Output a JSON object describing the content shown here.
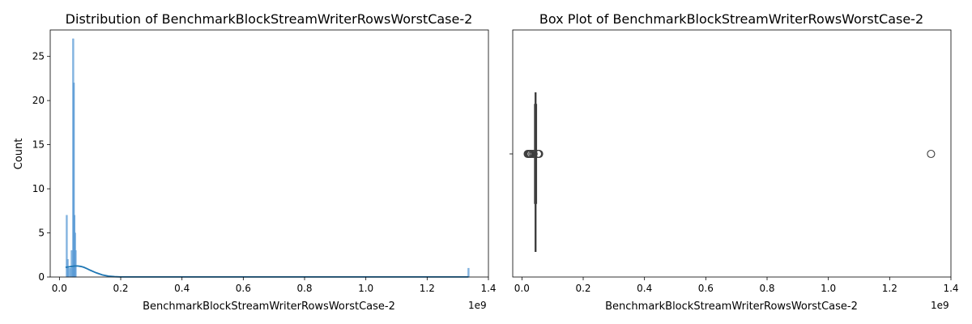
{
  "chart_data": [
    {
      "type": "histogram",
      "title": "Distribution of BenchmarkBlockStreamWriterRowsWorstCase-2",
      "xlabel": "BenchmarkBlockStreamWriterRowsWorstCase-2",
      "ylabel": "Count",
      "x_offset_label": "1e9",
      "xlim": [
        -0.03,
        1.4
      ],
      "ylim": [
        0,
        28
      ],
      "x_ticks": [
        0.0,
        0.2,
        0.4,
        0.6,
        0.8,
        1.0,
        1.2,
        1.4
      ],
      "x_tick_labels": [
        "0.0",
        "0.2",
        "0.4",
        "0.6",
        "0.8",
        "1.0",
        "1.2",
        "1.4"
      ],
      "y_ticks": [
        0,
        5,
        10,
        15,
        20,
        25
      ],
      "y_tick_labels": [
        "0",
        "5",
        "10",
        "15",
        "20",
        "25"
      ],
      "bars": [
        {
          "x": 0.024,
          "count": 7
        },
        {
          "x": 0.027,
          "count": 2
        },
        {
          "x": 0.03,
          "count": 1
        },
        {
          "x": 0.036,
          "count": 1
        },
        {
          "x": 0.04,
          "count": 3
        },
        {
          "x": 0.043,
          "count": 1
        },
        {
          "x": 0.045,
          "count": 27
        },
        {
          "x": 0.047,
          "count": 22
        },
        {
          "x": 0.049,
          "count": 7
        },
        {
          "x": 0.051,
          "count": 5
        },
        {
          "x": 0.053,
          "count": 3
        },
        {
          "x": 1.335,
          "count": 1
        }
      ],
      "kde": {
        "x": [
          0.02,
          0.03,
          0.04,
          0.05,
          0.06,
          0.07,
          0.08,
          0.09,
          0.1,
          0.12,
          0.14,
          0.16,
          0.18,
          0.2,
          0.25,
          0.3,
          0.5,
          0.8,
          1.0,
          1.2,
          1.335
        ],
        "y": [
          1.1,
          1.15,
          1.2,
          1.25,
          1.25,
          1.2,
          1.1,
          0.95,
          0.78,
          0.48,
          0.24,
          0.1,
          0.04,
          0.015,
          0.01,
          0.01,
          0.01,
          0.01,
          0.01,
          0.01,
          0.01
        ]
      },
      "colors": {
        "bar": "#5b9bd5",
        "kde": "#1f77b4"
      }
    },
    {
      "type": "box",
      "title": "Box Plot of BenchmarkBlockStreamWriterRowsWorstCase-2",
      "xlabel": "BenchmarkBlockStreamWriterRowsWorstCase-2",
      "x_offset_label": "1e9",
      "xlim": [
        -0.03,
        1.4
      ],
      "x_ticks": [
        0.0,
        0.2,
        0.4,
        0.6,
        0.8,
        1.0,
        1.2,
        1.4
      ],
      "x_tick_labels": [
        "0.0",
        "0.2",
        "0.4",
        "0.6",
        "0.8",
        "1.0",
        "1.2",
        "1.4"
      ],
      "box": {
        "q1": 0.0415,
        "median": 0.0445,
        "q3": 0.0475,
        "whisker_low": 0.0415,
        "whisker_high": 0.0475
      },
      "outliers": [
        0.019,
        0.021,
        0.023,
        0.025,
        0.027,
        0.029,
        0.034,
        0.038,
        0.052,
        0.054,
        0.056,
        1.335
      ],
      "colors": {
        "box_edge": "#3f3f3f",
        "box_fill": "#1f77b4"
      }
    }
  ]
}
